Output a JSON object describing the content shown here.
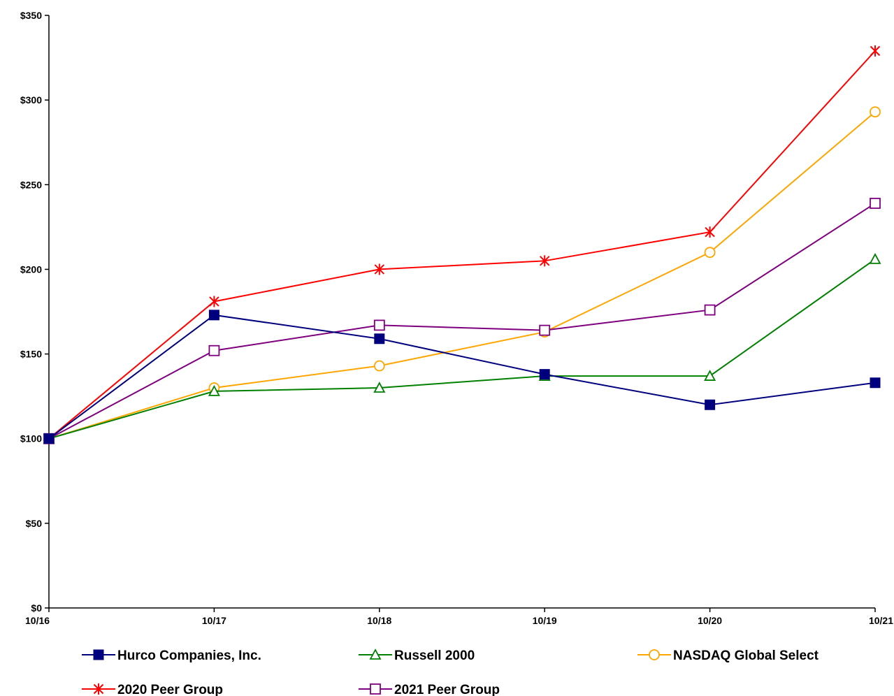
{
  "chart_data": {
    "type": "line",
    "title": "",
    "xlabel": "",
    "ylabel": "",
    "categories": [
      "10/16",
      "10/17",
      "10/18",
      "10/19",
      "10/20",
      "10/21"
    ],
    "ylim": [
      0,
      350
    ],
    "yticks": [
      0,
      50,
      100,
      150,
      200,
      250,
      300,
      350
    ],
    "ytick_labels": [
      "$0",
      "$50",
      "$100",
      "$150",
      "$200",
      "$250",
      "$300",
      "$350"
    ],
    "grid": false,
    "legend_position": "bottom",
    "series": [
      {
        "name": "Hurco Companies, Inc.",
        "values": [
          100,
          173,
          159,
          138,
          120,
          133
        ],
        "color": "#00007F",
        "marker": "filled-square"
      },
      {
        "name": "Russell 2000",
        "values": [
          100,
          128,
          130,
          137,
          137,
          206
        ],
        "color": "#008000",
        "marker": "open-triangle"
      },
      {
        "name": "NASDAQ Global Select",
        "values": [
          100,
          130,
          143,
          163,
          210,
          293
        ],
        "color": "#FFA500",
        "marker": "open-circle"
      },
      {
        "name": "2020 Peer Group",
        "values": [
          100,
          181,
          200,
          205,
          222,
          329
        ],
        "color": "#FF0000",
        "marker": "star"
      },
      {
        "name": "2021 Peer Group",
        "values": [
          100,
          152,
          167,
          164,
          176,
          239
        ],
        "color": "#7F007F",
        "marker": "open-square"
      }
    ]
  }
}
